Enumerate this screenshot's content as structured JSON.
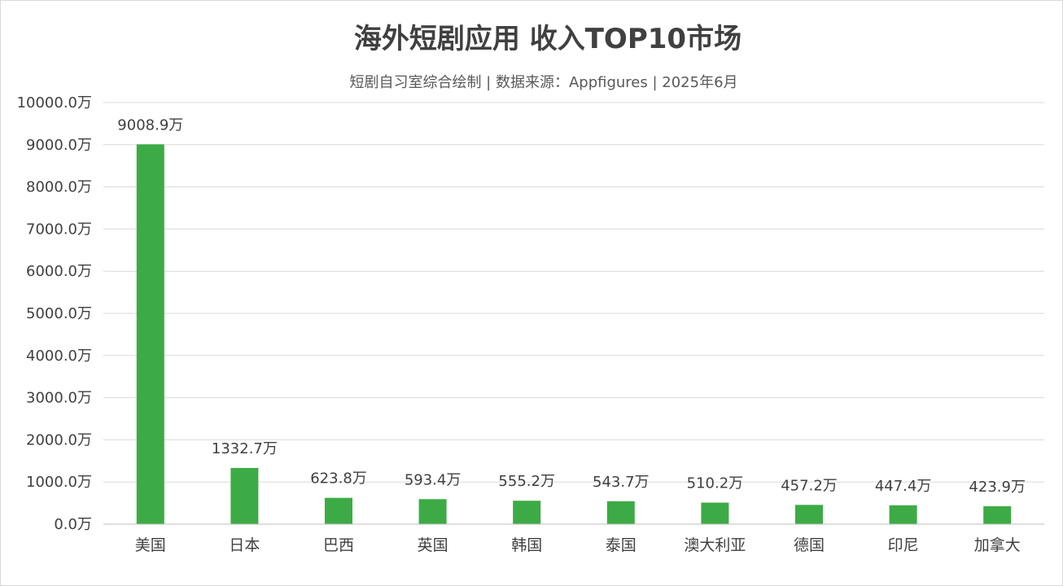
{
  "chart_data": {
    "type": "bar",
    "title": "海外短剧应用 收入TOP10市场",
    "subtitle": "短剧自习室综合绘制 | 数据来源：Appfigures | 2025年6月",
    "categories": [
      "美国",
      "日本",
      "巴西",
      "英国",
      "韩国",
      "泰国",
      "澳大利亚",
      "德国",
      "印尼",
      "加拿大"
    ],
    "values": [
      9008.9,
      1332.7,
      623.8,
      593.4,
      555.2,
      543.7,
      510.2,
      457.2,
      447.4,
      423.9
    ],
    "data_labels": [
      "9008.9万",
      "1332.7万",
      "623.8万",
      "593.4万",
      "555.2万",
      "543.7万",
      "510.2万",
      "457.2万",
      "447.4万",
      "423.9万"
    ],
    "yticks": [
      0,
      1000,
      2000,
      3000,
      4000,
      5000,
      6000,
      7000,
      8000,
      9000,
      10000
    ],
    "ytick_labels": [
      "0.0万",
      "1000.0万",
      "2000.0万",
      "3000.0万",
      "4000.0万",
      "5000.0万",
      "6000.0万",
      "7000.0万",
      "8000.0万",
      "9000.0万",
      "10000.0万"
    ],
    "ylim": [
      0,
      10000
    ],
    "xlabel": "",
    "ylabel": "",
    "grid": true,
    "legend": "none",
    "bar_color": "#3dab45"
  }
}
